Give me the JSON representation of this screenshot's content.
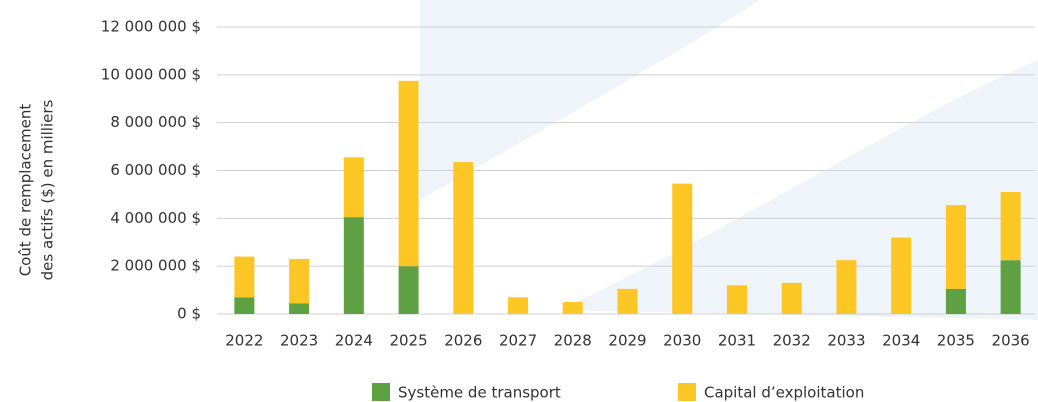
{
  "chart_data": {
    "type": "stacked_bar",
    "y_label_lines": [
      "Coût de remplacement",
      "des actifs ($) en milliers"
    ],
    "categories": [
      "2022",
      "2023",
      "2024",
      "2025",
      "2026",
      "2027",
      "2028",
      "2029",
      "2030",
      "2031",
      "2032",
      "2033",
      "2034",
      "2035",
      "2036"
    ],
    "series": [
      {
        "name": "Système de transport",
        "color": "#5fa043",
        "values": [
          700000,
          450000,
          4050000,
          2000000,
          0,
          0,
          0,
          0,
          0,
          0,
          0,
          0,
          0,
          1050000,
          2250000
        ]
      },
      {
        "name": "Capital d’exploitation",
        "color": "#fcc624",
        "values": [
          1700000,
          1850000,
          2500000,
          7750000,
          6350000,
          700000,
          500000,
          1050000,
          5450000,
          1200000,
          1300000,
          2250000,
          3200000,
          3500000,
          2850000
        ]
      }
    ],
    "ylim": [
      0,
      12000000
    ],
    "yticks": [
      {
        "value": 0,
        "label": "0 $"
      },
      {
        "value": 2000000,
        "label": "2 000 000 $"
      },
      {
        "value": 4000000,
        "label": "4 000 000 $"
      },
      {
        "value": 6000000,
        "label": "6 000 000 $"
      },
      {
        "value": 8000000,
        "label": "8 000 000 $"
      },
      {
        "value": 10000000,
        "label": "10 000 000 $"
      },
      {
        "value": 12000000,
        "label": "12 000 000 $"
      }
    ],
    "grid": true
  }
}
